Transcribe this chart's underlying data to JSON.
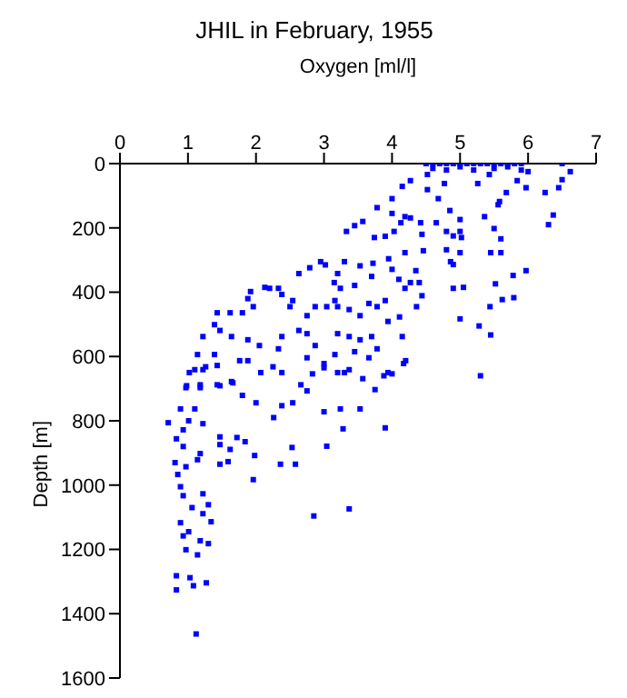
{
  "chart_data": {
    "type": "scatter",
    "title": "JHIL in February, 1955",
    "xlabel": "Oxygen [ml/l]",
    "ylabel": "Depth [m]",
    "xlim": [
      0,
      7
    ],
    "xticks": [
      0,
      1,
      2,
      3,
      4,
      5,
      6,
      7
    ],
    "ylim": [
      1600,
      0
    ],
    "yticks": [
      0,
      200,
      400,
      600,
      800,
      1000,
      1200,
      1400,
      1600
    ],
    "grid": false,
    "legend": false,
    "marker": "square",
    "series": [
      {
        "color": "#0000ff",
        "x": [
          4.5,
          4.6,
          4.7,
          4.8,
          4.9,
          5.0,
          5.1,
          5.2,
          5.3,
          5.4,
          5.5,
          5.6,
          5.7,
          5.8,
          5.9,
          4.6,
          4.8,
          5.0,
          5.2,
          5.5,
          5.7,
          5.9,
          6.5,
          6.62,
          6.5,
          6.45,
          6.25,
          6.37,
          6.3,
          5.97,
          6.0,
          5.97,
          5.78,
          5.79,
          5.62,
          5.52,
          5.44,
          5.28,
          5.45,
          5.3,
          5.0,
          5.05,
          4.9,
          4.86,
          4.9,
          4.8,
          5.0,
          5.45,
          5.6,
          5.6,
          5.5,
          5.0,
          4.9,
          4.8,
          4.35,
          4.46,
          4.44,
          4.27,
          4.42,
          4.19,
          4.13,
          4.0,
          4.0,
          3.78,
          3.57,
          3.33,
          3.45,
          3.74,
          3.9,
          4.03,
          4.19,
          3.95,
          3.72,
          3.53,
          3.3,
          3.2,
          3.02,
          2.79,
          2.63,
          2.95,
          3.15,
          3.24,
          3.45,
          3.7,
          4.0,
          4.1,
          4.27,
          4.4,
          4.19,
          4.44,
          4.36,
          4.11,
          3.94,
          3.78,
          3.9,
          3.66,
          3.53,
          3.37,
          3.2,
          3.16,
          3.04,
          2.87,
          2.75,
          2.54,
          2.5,
          2.38,
          2.33,
          2.2,
          2.13,
          1.92,
          1.88,
          1.96,
          1.8,
          1.62,
          1.43,
          1.39,
          1.47,
          1.64,
          1.88,
          2.05,
          2.38,
          2.63,
          2.75,
          2.87,
          3.2,
          3.37,
          3.53,
          3.7,
          3.78,
          3.66,
          3.45,
          3.16,
          3.0,
          2.75,
          2.33,
          2.25,
          2.07,
          1.88,
          1.76,
          1.64,
          1.43,
          1.39,
          1.22,
          1.14,
          1.02,
          0.98,
          1.18,
          1.22,
          4.15,
          3.94,
          4.2,
          3.3,
          2.83,
          2.38,
          4.52,
          4.68,
          4.85,
          5.0,
          5.36,
          5.56,
          5.68,
          5.84,
          4.52,
          4.77,
          5.26,
          5.43,
          4.65,
          5.02,
          5.58,
          4.27,
          4.15,
          1.1,
          1.26,
          1.43,
          0.97,
          1.18,
          1.47,
          1.66,
          1.8,
          2.0,
          2.26,
          2.38,
          2.54,
          2.66,
          2.75,
          3.0,
          3.0,
          3.2,
          3.37,
          3.57,
          3.75,
          3.88,
          4.0,
          4.17,
          3.24,
          3.53,
          3.28,
          3.04,
          3.9,
          2.53,
          2.36,
          2.58,
          1.96,
          1.98,
          1.59,
          1.47,
          1.47,
          1.84,
          1.62,
          1.72,
          1.47,
          1.14,
          0.81,
          0.85,
          0.71,
          0.83,
          0.93,
          1.01,
          0.89,
          1.1,
          1.22,
          0.93,
          1.18,
          0.97,
          0.89,
          0.93,
          1.22,
          1.3,
          1.06,
          1.22,
          1.34,
          0.89,
          1.01,
          0.93,
          1.18,
          1.3,
          0.97,
          1.14,
          2.85,
          3.37,
          0.83,
          1.03,
          1.08,
          1.27,
          0.83,
          1.12
        ],
        "values": [
          0,
          0,
          0,
          0,
          0,
          0,
          0,
          0,
          0,
          0,
          0,
          0,
          0,
          0,
          0,
          15,
          20,
          10,
          20,
          15,
          10,
          20,
          0,
          25,
          50,
          75,
          90,
          160,
          190,
          75,
          25,
          333,
          348,
          417,
          423,
          374,
          445,
          505,
          533,
          660,
          483,
          385,
          388,
          305,
          314,
          268,
          277,
          277,
          277,
          234,
          202,
          211,
          225,
          211,
          333,
          271,
          220,
          169,
          184,
          165,
          184,
          155,
          109,
          137,
          180,
          211,
          193,
          230,
          226,
          211,
          277,
          296,
          310,
          318,
          305,
          342,
          315,
          324,
          342,
          305,
          370,
          388,
          379,
          351,
          329,
          360,
          370,
          370,
          388,
          411,
          445,
          477,
          491,
          445,
          426,
          435,
          473,
          454,
          445,
          426,
          445,
          445,
          473,
          426,
          445,
          407,
          388,
          388,
          385,
          398,
          420,
          445,
          464,
          464,
          464,
          501,
          519,
          538,
          548,
          566,
          538,
          519,
          529,
          566,
          529,
          538,
          548,
          538,
          576,
          604,
          585,
          594,
          622,
          604,
          576,
          632,
          650,
          613,
          613,
          678,
          688,
          594,
          641,
          594,
          650,
          691,
          688,
          538,
          538,
          650,
          613,
          650,
          654,
          650,
          34,
          109,
          146,
          174,
          165,
          128,
          90,
          53,
          81,
          62,
          62,
          34,
          184,
          230,
          118,
          53,
          71,
          641,
          632,
          628,
          697,
          697,
          691,
          682,
          721,
          744,
          790,
          753,
          744,
          688,
          707,
          635,
          772,
          650,
          641,
          669,
          703,
          660,
          654,
          622,
          763,
          763,
          825,
          879,
          822,
          883,
          935,
          935,
          983,
          908,
          927,
          935,
          874,
          865,
          889,
          852,
          850,
          921,
          930,
          967,
          806,
          856,
          828,
          800,
          763,
          763,
          809,
          880,
          902,
          943,
          1005,
          1033,
          1027,
          1061,
          1070,
          1089,
          1114,
          1117,
          1145,
          1158,
          1173,
          1182,
          1201,
          1217,
          1096,
          1074,
          1282,
          1288,
          1313,
          1304,
          1326,
          1463
        ]
      }
    ]
  }
}
